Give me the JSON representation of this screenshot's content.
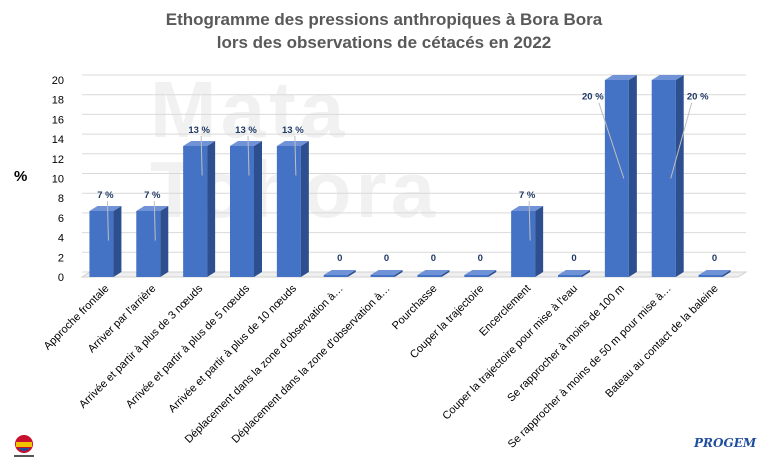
{
  "title_line1": "Ethogramme des pressions anthropiques à Bora Bora",
  "title_line2": "lors des observations de cétacés en 2022",
  "watermark_line1": "Mata",
  "watermark_line2": "Tohora",
  "logo_right_text": "PROGEM",
  "chart_data": {
    "type": "bar",
    "title": "Ethogramme des pressions anthropiques à Bora Bora lors des observations de cétacés en 2022",
    "ylabel": "%",
    "xlabel": "",
    "ylim": [
      0,
      20
    ],
    "yticks": [
      0,
      2,
      4,
      6,
      8,
      10,
      12,
      14,
      16,
      18,
      20
    ],
    "grid": true,
    "categories": [
      "Approche frontale",
      "Arriver par l'arrière",
      "Arrivée et partir à plus de 3 nœuds",
      "Arrivée et partir à plus de 5 nœuds",
      "Arrivée et partir à plus de 10 nœuds",
      "Déplacement dans la zone d'observation à…",
      "Déplacement dans la zone d'observation à…",
      "Pourchasse",
      "Couper la trajectoire",
      "Encerclement",
      "Couper la trajectoire pour mise à l'eau",
      "Se rapprocher à moins de 100 m",
      "Se rapprocher à moins de 50 m pour mise à…",
      "Bateau au contact de la baleine"
    ],
    "values": [
      6.7,
      6.7,
      13.3,
      13.3,
      13.3,
      0,
      0,
      0,
      0,
      6.7,
      0,
      20,
      20,
      0
    ],
    "data_labels": [
      "7 %",
      "7 %",
      "13 %",
      "13 %",
      "13 %",
      "0",
      "0",
      "0",
      "0",
      "7 %",
      "0",
      "20 %",
      "20 %",
      "0"
    ],
    "colors": {
      "bar_front": "#4472c4",
      "bar_side": "#2e4f8f",
      "bar_top": "#6f93d6",
      "label": "#1f3864",
      "grid": "#d9d9d9"
    }
  }
}
